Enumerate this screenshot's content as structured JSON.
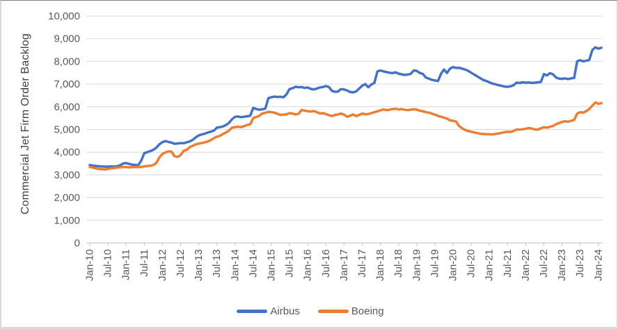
{
  "figure": {
    "y_axis_title": "Commercial Jet Firm Order Backlog",
    "y_tick_labels": [
      "0",
      "1,000",
      "2,000",
      "3,000",
      "4,000",
      "5,000",
      "6,000",
      "7,000",
      "8,000",
      "9,000",
      "10,000"
    ]
  },
  "chart_data": {
    "type": "line",
    "title": "",
    "xlabel": "",
    "ylabel": "Commercial Jet Firm Order Backlog",
    "x_start": "Jan-2010",
    "x_interval": "monthly",
    "x_end": "Feb-2024",
    "x_tick_every_months": 6,
    "x_tick_labels": [
      "Jan-10",
      "Jul-10",
      "Jan-11",
      "Jul-11",
      "Jan-12",
      "Jul-12",
      "Jan-13",
      "Jul-13",
      "Jan-14",
      "Jul-14",
      "Jan-15",
      "Jul-15",
      "Jan-16",
      "Jul-16",
      "Jan-17",
      "Jul-17",
      "Jan-18",
      "Jul-18",
      "Jan-19",
      "Jul-19",
      "Jan-20",
      "Jul-20",
      "Jan-21",
      "Jul-21",
      "Jan-22",
      "Jul-22",
      "Jan-23",
      "Jul-23",
      "Jan-24"
    ],
    "ylim": [
      0,
      10000
    ],
    "y_tick_step": 1000,
    "grid": "horizontal",
    "legend_position": "bottom",
    "series": [
      {
        "name": "Airbus",
        "color": "#4472C4",
        "values": [
          3430,
          3410,
          3390,
          3380,
          3370,
          3360,
          3360,
          3370,
          3360,
          3380,
          3420,
          3500,
          3520,
          3480,
          3450,
          3440,
          3420,
          3620,
          3950,
          4000,
          4050,
          4100,
          4200,
          4350,
          4440,
          4490,
          4450,
          4420,
          4370,
          4380,
          4400,
          4390,
          4430,
          4470,
          4540,
          4650,
          4740,
          4780,
          4810,
          4870,
          4900,
          4950,
          5080,
          5100,
          5130,
          5200,
          5290,
          5450,
          5560,
          5570,
          5540,
          5560,
          5580,
          5600,
          5950,
          5900,
          5870,
          5890,
          5920,
          6380,
          6420,
          6450,
          6430,
          6440,
          6420,
          6550,
          6780,
          6820,
          6880,
          6860,
          6870,
          6830,
          6850,
          6790,
          6760,
          6800,
          6850,
          6870,
          6910,
          6870,
          6700,
          6660,
          6670,
          6780,
          6760,
          6720,
          6650,
          6630,
          6680,
          6800,
          6930,
          7000,
          6860,
          6980,
          7050,
          7560,
          7600,
          7560,
          7530,
          7500,
          7480,
          7520,
          7460,
          7430,
          7400,
          7420,
          7450,
          7600,
          7580,
          7490,
          7450,
          7290,
          7240,
          7190,
          7160,
          7130,
          7450,
          7640,
          7490,
          7680,
          7750,
          7710,
          7720,
          7680,
          7640,
          7580,
          7500,
          7420,
          7340,
          7260,
          7180,
          7130,
          7080,
          7020,
          6990,
          6950,
          6920,
          6890,
          6880,
          6900,
          6950,
          7060,
          7050,
          7080,
          7060,
          7070,
          7050,
          7060,
          7080,
          7090,
          7440,
          7380,
          7480,
          7430,
          7290,
          7240,
          7230,
          7250,
          7220,
          7250,
          7270,
          8000,
          8050,
          8000,
          8030,
          8060,
          8500,
          8620,
          8560,
          8600
        ]
      },
      {
        "name": "Boeing",
        "color": "#ED7D31",
        "values": [
          3350,
          3320,
          3280,
          3260,
          3250,
          3240,
          3260,
          3280,
          3300,
          3320,
          3330,
          3350,
          3340,
          3330,
          3340,
          3350,
          3340,
          3350,
          3370,
          3390,
          3400,
          3430,
          3530,
          3770,
          3920,
          3990,
          4030,
          4020,
          3820,
          3790,
          3870,
          4060,
          4100,
          4220,
          4280,
          4340,
          4380,
          4400,
          4430,
          4470,
          4530,
          4620,
          4680,
          4720,
          4800,
          4870,
          4950,
          5080,
          5100,
          5120,
          5100,
          5150,
          5200,
          5230,
          5500,
          5550,
          5600,
          5710,
          5730,
          5780,
          5760,
          5740,
          5690,
          5640,
          5650,
          5670,
          5720,
          5700,
          5660,
          5690,
          5860,
          5830,
          5800,
          5790,
          5810,
          5760,
          5700,
          5720,
          5680,
          5630,
          5590,
          5640,
          5660,
          5700,
          5650,
          5560,
          5610,
          5660,
          5590,
          5640,
          5700,
          5670,
          5680,
          5720,
          5760,
          5800,
          5840,
          5880,
          5850,
          5870,
          5900,
          5910,
          5880,
          5900,
          5870,
          5850,
          5870,
          5890,
          5870,
          5830,
          5800,
          5760,
          5740,
          5700,
          5650,
          5600,
          5560,
          5520,
          5480,
          5400,
          5380,
          5350,
          5150,
          5050,
          4980,
          4930,
          4900,
          4870,
          4840,
          4810,
          4800,
          4790,
          4790,
          4780,
          4800,
          4820,
          4850,
          4880,
          4900,
          4890,
          4930,
          5000,
          4990,
          5010,
          5030,
          5060,
          5040,
          5000,
          4990,
          5050,
          5100,
          5080,
          5120,
          5150,
          5230,
          5280,
          5330,
          5360,
          5340,
          5380,
          5420,
          5700,
          5760,
          5740,
          5810,
          5900,
          6050,
          6190,
          6130,
          6160
        ]
      }
    ]
  }
}
